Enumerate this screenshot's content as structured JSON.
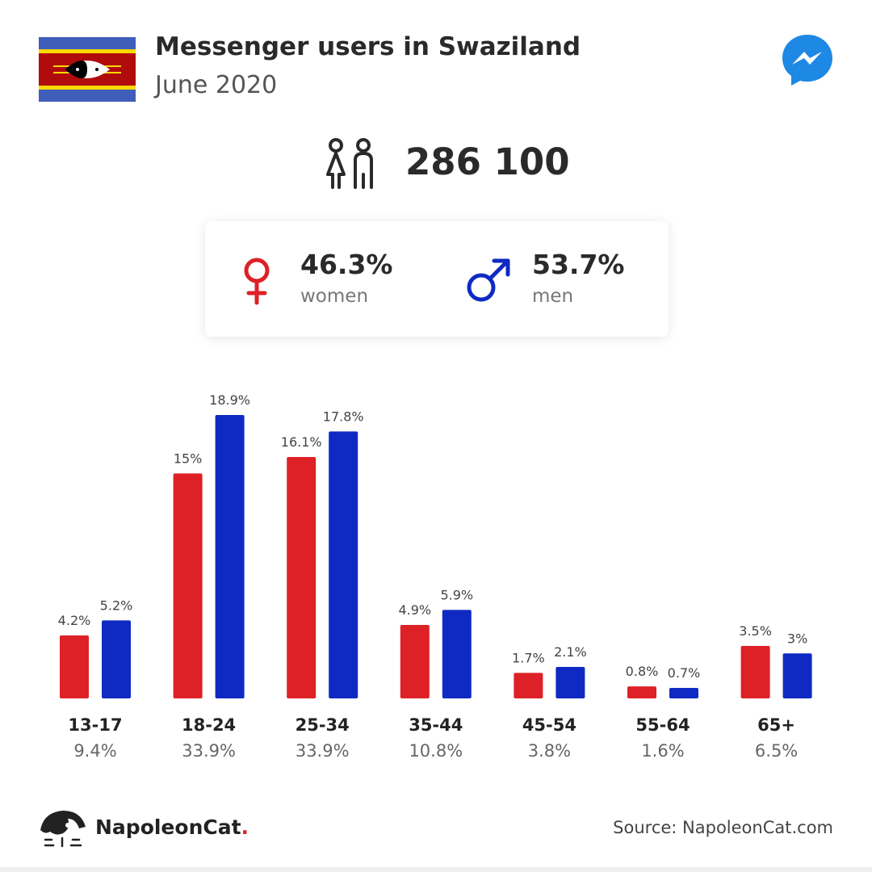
{
  "header": {
    "title": "Messenger users in Swaziland",
    "subtitle": "June 2020",
    "flag_icon": "swaziland-flag",
    "app_icon": "messenger-logo-icon"
  },
  "summary": {
    "total_users": "286 100",
    "women": {
      "value": "46.3%",
      "label": "women"
    },
    "men": {
      "value": "53.7%",
      "label": "men"
    }
  },
  "colors": {
    "women": "#dd2127",
    "men": "#0f2ac3",
    "messenger": "#1e88e5"
  },
  "chart_data": {
    "type": "bar",
    "categories": [
      "13-17",
      "18-24",
      "25-34",
      "35-44",
      "45-54",
      "55-64",
      "65+"
    ],
    "category_totals": [
      "9.4%",
      "33.9%",
      "33.9%",
      "10.8%",
      "3.8%",
      "1.6%",
      "6.5%"
    ],
    "series": [
      {
        "name": "women",
        "values": [
          4.2,
          15,
          16.1,
          4.9,
          1.7,
          0.8,
          3.5
        ],
        "labels": [
          "4.2%",
          "15%",
          "16.1%",
          "4.9%",
          "1.7%",
          "0.8%",
          "3.5%"
        ]
      },
      {
        "name": "men",
        "values": [
          5.2,
          18.9,
          17.8,
          5.9,
          2.1,
          0.7,
          3
        ],
        "labels": [
          "5.2%",
          "18.9%",
          "17.8%",
          "5.9%",
          "2.1%",
          "0.7%",
          "3%"
        ]
      }
    ],
    "ylim": [
      0,
      18.9
    ],
    "grid": false
  },
  "footer": {
    "brand": "NapoleonCat",
    "brand_dot": ".",
    "source": "Source: NapoleonCat.com"
  }
}
